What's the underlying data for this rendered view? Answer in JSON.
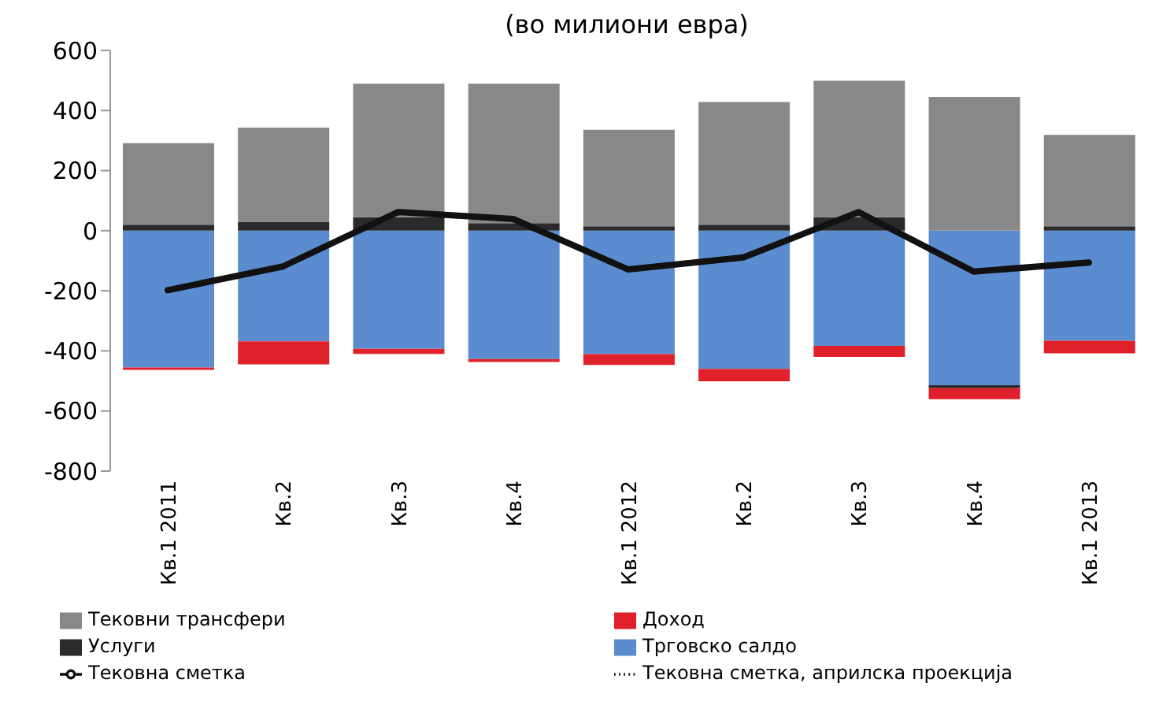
{
  "chart_data": {
    "type": "bar",
    "title": "(во милиони евра)",
    "stacked": true,
    "categories": [
      "Кв.1 2011",
      "Кв.2",
      "Кв.3",
      "Кв.4",
      "Кв.1 2012",
      "Кв.2",
      "Кв.3",
      "Кв.4",
      "Кв.1 2013"
    ],
    "series": [
      {
        "name": "Тековни трансфери",
        "color": "#888888",
        "values": [
          271,
          313,
          444,
          464,
          321,
          408,
          454,
          445,
          304
        ]
      },
      {
        "name": "Доход",
        "color": "#e0202a",
        "values": [
          -8,
          -77,
          -17,
          -10,
          -36,
          -41,
          -37,
          -37,
          -42
        ]
      },
      {
        "name": "Услуги",
        "color": "#2a2a2a",
        "values": [
          20,
          30,
          45,
          25,
          15,
          20,
          45,
          -10,
          15
        ]
      },
      {
        "name": "Трговско салдо",
        "color": "#5a8ccf",
        "values": [
          -455,
          -368,
          -393,
          -427,
          -411,
          -460,
          -383,
          -514,
          -366
        ]
      },
      {
        "name": "Тековна сметка",
        "type": "line",
        "color": "#111111",
        "values": [
          -198,
          -119,
          62,
          39,
          -129,
          -89,
          62,
          -136,
          -106
        ]
      },
      {
        "name": "Тековна сметка, априлска проекција",
        "type": "line",
        "line_style": "dotted",
        "color": "#111111",
        "values": [
          null,
          null,
          null,
          null,
          null,
          null,
          null,
          null,
          null
        ]
      }
    ],
    "ylim": [
      -800,
      600
    ],
    "yticks": [
      -800,
      -600,
      -400,
      -200,
      0,
      200,
      400,
      600
    ],
    "legend": "bottom",
    "marker": "none"
  }
}
